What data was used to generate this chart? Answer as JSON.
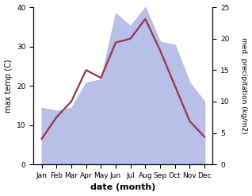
{
  "months": [
    "Jan",
    "Feb",
    "Mar",
    "Apr",
    "May",
    "Jun",
    "Jul",
    "Aug",
    "Sep",
    "Oct",
    "Nov",
    "Dec"
  ],
  "temp": [
    6.5,
    12.0,
    16.0,
    24.0,
    22.0,
    31.0,
    32.0,
    37.0,
    29.0,
    20.0,
    11.0,
    7.0
  ],
  "precip": [
    9.0,
    8.5,
    9.0,
    13.0,
    13.5,
    24.0,
    22.0,
    25.0,
    19.5,
    19.0,
    13.0,
    10.0
  ],
  "temp_color": "#993344",
  "precip_fill_color": "#b8bfe8",
  "title": "",
  "xlabel": "date (month)",
  "ylabel_left": "max temp (C)",
  "ylabel_right": "med. precipitation (kg/m2)",
  "ylim_left": [
    0,
    40
  ],
  "ylim_right": [
    0,
    25
  ],
  "yticks_left": [
    0,
    10,
    20,
    30,
    40
  ],
  "yticks_right": [
    0,
    5,
    10,
    15,
    20,
    25
  ],
  "bg_color": "#ffffff",
  "line_width": 1.6,
  "fill_alpha": 1.0
}
